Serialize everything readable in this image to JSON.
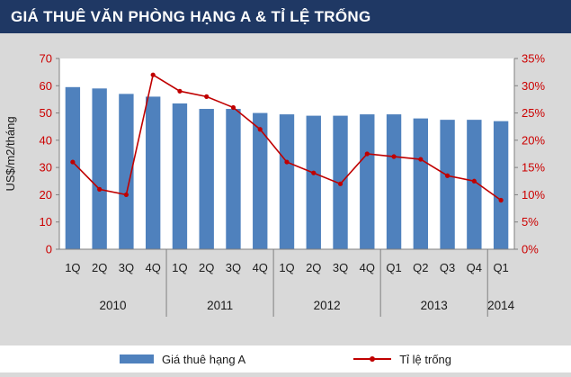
{
  "header": {
    "title": "GIÁ THUÊ VĂN PHÒNG HẠNG A & TỈ LỆ TRỐNG"
  },
  "legend": {
    "rent_label": "Giá thuê hạng A",
    "vacancy_label": "Tỉ lệ trống"
  },
  "chart_data": {
    "type": "bar+line",
    "title": "GIÁ THUÊ VĂN PHÒNG HẠNG A & TỈ LỆ TRỐNG",
    "categories": [
      "1Q",
      "2Q",
      "3Q",
      "4Q",
      "1Q",
      "2Q",
      "3Q",
      "4Q",
      "1Q",
      "2Q",
      "3Q",
      "4Q",
      "Q1",
      "Q2",
      "Q3",
      "Q4",
      "Q1"
    ],
    "year_groups": [
      {
        "label": "2010",
        "count": 4
      },
      {
        "label": "2011",
        "count": 4
      },
      {
        "label": "2012",
        "count": 4
      },
      {
        "label": "2013",
        "count": 4
      },
      {
        "label": "2014",
        "count": 1
      }
    ],
    "series": [
      {
        "name": "Giá thuê hạng A",
        "type": "bar",
        "axis": "left",
        "unit": "US$/m2/tháng",
        "values": [
          59.5,
          59,
          57,
          56,
          53.5,
          51.5,
          51.5,
          50,
          49.5,
          49,
          49,
          49.5,
          49.5,
          48,
          47.5,
          47.5,
          47
        ]
      },
      {
        "name": "Tỉ lệ trống",
        "type": "line",
        "axis": "right",
        "unit": "%",
        "values": [
          16,
          11,
          10,
          32,
          29,
          28,
          26,
          22,
          16,
          14,
          12,
          17.5,
          17,
          16.5,
          13.5,
          12.5,
          9
        ]
      }
    ],
    "left_axis": {
      "label": "US$/m2/tháng",
      "min": 0,
      "max": 70,
      "step": 10
    },
    "right_axis": {
      "label": "",
      "min": 0,
      "max": 35,
      "step": 5,
      "suffix": "%"
    },
    "legend_position": "bottom",
    "grid": false,
    "colors": {
      "bar": "#4F81BD",
      "line": "#C00000",
      "axis_text": "#CC0000",
      "category_text": "#1A1A1A",
      "axis_line": "#808080",
      "header_bg": "#1F3864",
      "header_text": "#FFFFFF",
      "background": "#D9D9D9",
      "plot_bg": "#FFFFFF",
      "legend_bg": "#FFFFFF"
    }
  }
}
